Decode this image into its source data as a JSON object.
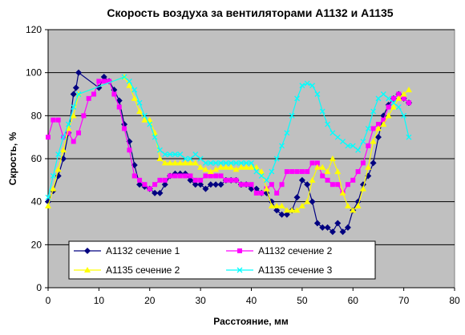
{
  "chart_data": {
    "type": "line",
    "title": "Скорость воздуха за вентиляторами А1132 и А1135",
    "xlabel": "Расстояние, мм",
    "ylabel": "Скрость, %",
    "xlim": [
      0,
      80
    ],
    "ylim": [
      0,
      120
    ],
    "x_ticks": [
      0,
      10,
      20,
      30,
      40,
      50,
      60,
      70,
      80
    ],
    "y_ticks": [
      0,
      20,
      40,
      60,
      80,
      100,
      120
    ],
    "x_tick_labels": [
      "0",
      "10",
      "20",
      "30",
      "40",
      "50",
      "60",
      "70",
      "80"
    ],
    "y_tick_labels": [
      "0",
      "20",
      "40",
      "60",
      "80",
      "100",
      "120"
    ],
    "grid": "horizontal",
    "plot_background": "#c0c0c0",
    "legend_position": "bottom-inside",
    "series": [
      {
        "name": "А1132 сечение 1",
        "color": "#000080",
        "marker": "diamond",
        "points": [
          [
            0,
            40
          ],
          [
            1,
            45
          ],
          [
            2,
            52
          ],
          [
            3,
            60
          ],
          [
            4,
            72
          ],
          [
            5,
            90
          ],
          [
            5.5,
            93
          ],
          [
            6,
            100
          ],
          [
            10,
            93
          ],
          [
            11,
            98
          ],
          [
            12,
            96
          ],
          [
            13,
            92
          ],
          [
            14,
            87
          ],
          [
            15,
            76
          ],
          [
            16,
            68
          ],
          [
            17,
            57
          ],
          [
            18,
            48
          ],
          [
            19,
            47
          ],
          [
            20,
            46
          ],
          [
            21,
            44
          ],
          [
            22,
            44
          ],
          [
            23,
            48
          ],
          [
            24,
            52
          ],
          [
            25,
            53
          ],
          [
            26,
            53
          ],
          [
            27,
            53
          ],
          [
            28,
            50
          ],
          [
            29,
            48
          ],
          [
            30,
            48
          ],
          [
            31,
            46
          ],
          [
            32,
            48
          ],
          [
            33,
            48
          ],
          [
            34,
            48
          ],
          [
            35,
            50
          ],
          [
            36,
            50
          ],
          [
            37,
            50
          ],
          [
            38,
            48
          ],
          [
            39,
            48
          ],
          [
            40,
            46
          ],
          [
            41,
            46
          ],
          [
            42,
            44
          ],
          [
            43,
            44
          ],
          [
            44,
            40
          ],
          [
            45,
            36
          ],
          [
            46,
            34
          ],
          [
            47,
            34
          ],
          [
            48,
            36
          ],
          [
            49,
            42
          ],
          [
            50,
            50
          ],
          [
            51,
            48
          ],
          [
            52,
            40
          ],
          [
            53,
            30
          ],
          [
            54,
            28
          ],
          [
            55,
            28
          ],
          [
            56,
            26
          ],
          [
            57,
            30
          ],
          [
            58,
            26
          ],
          [
            59,
            28
          ],
          [
            60,
            36
          ],
          [
            61,
            40
          ],
          [
            62,
            48
          ],
          [
            63,
            52
          ],
          [
            64,
            58
          ],
          [
            65,
            70
          ],
          [
            66,
            80
          ],
          [
            67,
            85
          ],
          [
            68,
            88
          ],
          [
            69,
            90
          ],
          [
            70,
            88
          ],
          [
            71,
            86
          ]
        ]
      },
      {
        "name": "А1132 сечение 2",
        "color": "#ff00ff",
        "marker": "square",
        "points": [
          [
            0,
            70
          ],
          [
            1,
            78
          ],
          [
            2,
            78
          ],
          [
            3,
            70
          ],
          [
            4,
            72
          ],
          [
            5,
            68
          ],
          [
            6,
            72
          ],
          [
            7,
            80
          ],
          [
            8,
            88
          ],
          [
            9,
            90
          ],
          [
            10,
            96
          ],
          [
            11,
            96
          ],
          [
            12,
            96
          ],
          [
            13,
            90
          ],
          [
            14,
            84
          ],
          [
            15,
            74
          ],
          [
            16,
            64
          ],
          [
            17,
            52
          ],
          [
            18,
            50
          ],
          [
            19,
            48
          ],
          [
            20,
            46
          ],
          [
            21,
            48
          ],
          [
            22,
            50
          ],
          [
            23,
            50
          ],
          [
            24,
            52
          ],
          [
            25,
            52
          ],
          [
            26,
            52
          ],
          [
            27,
            52
          ],
          [
            28,
            52
          ],
          [
            29,
            50
          ],
          [
            30,
            50
          ],
          [
            31,
            52
          ],
          [
            32,
            52
          ],
          [
            33,
            52
          ],
          [
            34,
            52
          ],
          [
            35,
            50
          ],
          [
            36,
            50
          ],
          [
            37,
            50
          ],
          [
            38,
            48
          ],
          [
            39,
            48
          ],
          [
            40,
            48
          ],
          [
            41,
            44
          ],
          [
            42,
            44
          ],
          [
            43,
            46
          ],
          [
            44,
            48
          ],
          [
            45,
            44
          ],
          [
            46,
            48
          ],
          [
            47,
            54
          ],
          [
            48,
            54
          ],
          [
            49,
            54
          ],
          [
            50,
            54
          ],
          [
            51,
            54
          ],
          [
            52,
            58
          ],
          [
            53,
            58
          ],
          [
            54,
            52
          ],
          [
            55,
            50
          ],
          [
            56,
            48
          ],
          [
            57,
            48
          ],
          [
            58,
            44
          ],
          [
            59,
            48
          ],
          [
            60,
            50
          ],
          [
            61,
            54
          ],
          [
            62,
            58
          ],
          [
            63,
            66
          ],
          [
            64,
            74
          ],
          [
            65,
            76
          ],
          [
            66,
            78
          ],
          [
            67,
            84
          ],
          [
            68,
            88
          ],
          [
            69,
            90
          ],
          [
            70,
            88
          ],
          [
            71,
            86
          ]
        ]
      },
      {
        "name": "А1135 сечение 2",
        "color": "#ffff00",
        "marker": "triangle",
        "points": [
          [
            0,
            38
          ],
          [
            1,
            46
          ],
          [
            2,
            55
          ],
          [
            3,
            64
          ],
          [
            4,
            74
          ],
          [
            5,
            80
          ],
          [
            6,
            90
          ],
          [
            15,
            98
          ],
          [
            16,
            94
          ],
          [
            17,
            88
          ],
          [
            18,
            82
          ],
          [
            19,
            78
          ],
          [
            20,
            78
          ],
          [
            21,
            72
          ],
          [
            22,
            60
          ],
          [
            23,
            58
          ],
          [
            24,
            58
          ],
          [
            25,
            58
          ],
          [
            26,
            58
          ],
          [
            27,
            58
          ],
          [
            28,
            58
          ],
          [
            29,
            58
          ],
          [
            30,
            56
          ],
          [
            31,
            55
          ],
          [
            32,
            54
          ],
          [
            33,
            55
          ],
          [
            34,
            56
          ],
          [
            35,
            56
          ],
          [
            36,
            56
          ],
          [
            37,
            55
          ],
          [
            38,
            56
          ],
          [
            39,
            56
          ],
          [
            40,
            56
          ],
          [
            41,
            56
          ],
          [
            42,
            54
          ],
          [
            43,
            46
          ],
          [
            44,
            38
          ],
          [
            45,
            38
          ],
          [
            46,
            38
          ],
          [
            47,
            36
          ],
          [
            48,
            36
          ],
          [
            49,
            36
          ],
          [
            50,
            38
          ],
          [
            51,
            40
          ],
          [
            52,
            50
          ],
          [
            53,
            56
          ],
          [
            54,
            56
          ],
          [
            55,
            54
          ],
          [
            56,
            60
          ],
          [
            57,
            54
          ],
          [
            58,
            44
          ],
          [
            59,
            38
          ],
          [
            60,
            36
          ],
          [
            61,
            38
          ],
          [
            62,
            46
          ],
          [
            63,
            56
          ],
          [
            64,
            68
          ],
          [
            65,
            74
          ],
          [
            66,
            76
          ],
          [
            67,
            80
          ],
          [
            68,
            84
          ],
          [
            69,
            88
          ],
          [
            70,
            90
          ],
          [
            71,
            92
          ]
        ]
      },
      {
        "name": "А1135 сечение 3",
        "color": "#00ffff",
        "marker": "x",
        "points": [
          [
            0,
            42
          ],
          [
            1,
            52
          ],
          [
            2,
            62
          ],
          [
            3,
            70
          ],
          [
            4,
            76
          ],
          [
            5,
            84
          ],
          [
            6,
            90
          ],
          [
            15,
            98
          ],
          [
            16,
            96
          ],
          [
            17,
            92
          ],
          [
            18,
            86
          ],
          [
            19,
            80
          ],
          [
            20,
            76
          ],
          [
            21,
            70
          ],
          [
            22,
            64
          ],
          [
            23,
            62
          ],
          [
            24,
            62
          ],
          [
            25,
            62
          ],
          [
            26,
            62
          ],
          [
            27,
            60
          ],
          [
            28,
            60
          ],
          [
            29,
            62
          ],
          [
            30,
            60
          ],
          [
            31,
            58
          ],
          [
            32,
            58
          ],
          [
            33,
            58
          ],
          [
            34,
            58
          ],
          [
            35,
            58
          ],
          [
            36,
            58
          ],
          [
            37,
            58
          ],
          [
            38,
            58
          ],
          [
            39,
            58
          ],
          [
            40,
            58
          ],
          [
            41,
            54
          ],
          [
            42,
            52
          ],
          [
            43,
            50
          ],
          [
            44,
            54
          ],
          [
            45,
            60
          ],
          [
            46,
            66
          ],
          [
            47,
            72
          ],
          [
            48,
            80
          ],
          [
            49,
            88
          ],
          [
            50,
            94
          ],
          [
            51,
            95
          ],
          [
            52,
            94
          ],
          [
            53,
            90
          ],
          [
            54,
            82
          ],
          [
            55,
            76
          ],
          [
            56,
            72
          ],
          [
            57,
            70
          ],
          [
            58,
            68
          ],
          [
            59,
            66
          ],
          [
            60,
            66
          ],
          [
            61,
            64
          ],
          [
            62,
            68
          ],
          [
            63,
            74
          ],
          [
            64,
            82
          ],
          [
            65,
            88
          ],
          [
            66,
            90
          ],
          [
            67,
            88
          ],
          [
            68,
            86
          ],
          [
            69,
            84
          ],
          [
            70,
            80
          ],
          [
            71,
            70
          ]
        ]
      }
    ]
  }
}
